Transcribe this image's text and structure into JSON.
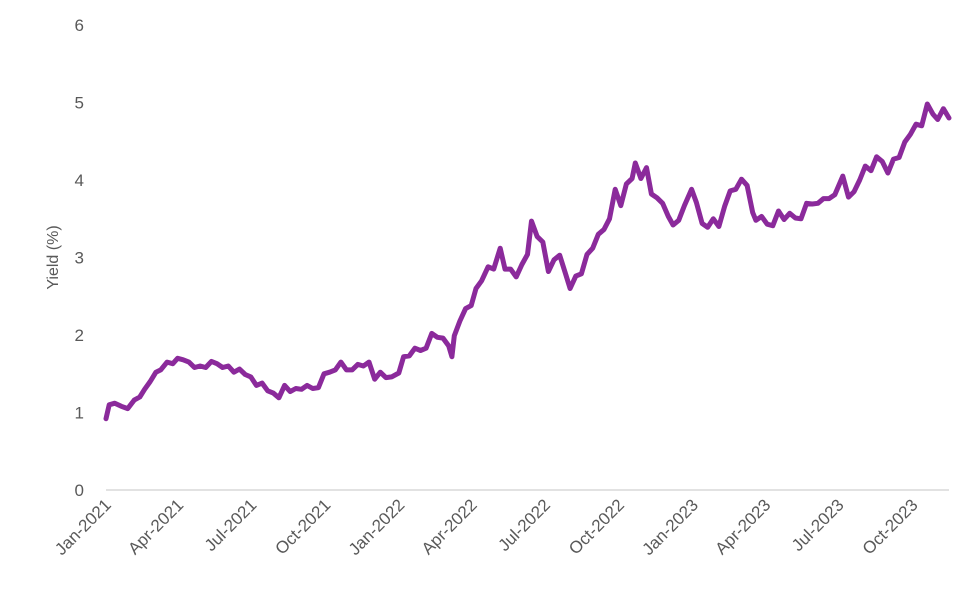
{
  "chart_data": {
    "type": "line",
    "title": "",
    "xlabel": "",
    "ylabel": "Yield (%)",
    "ylim": [
      0,
      6
    ],
    "yticks": [
      "0",
      "1",
      "2",
      "3",
      "4",
      "5",
      "6"
    ],
    "xlim": [
      "2021-01-01",
      "2023-11-15"
    ],
    "xticks": [
      {
        "date": "2021-01-01",
        "label": "Jan-2021"
      },
      {
        "date": "2021-04-01",
        "label": "Apr-2021"
      },
      {
        "date": "2021-07-01",
        "label": "Jul-2021"
      },
      {
        "date": "2021-10-01",
        "label": "Oct-2021"
      },
      {
        "date": "2022-01-01",
        "label": "Jan-2022"
      },
      {
        "date": "2022-04-01",
        "label": "Apr-2022"
      },
      {
        "date": "2022-07-01",
        "label": "Jul-2022"
      },
      {
        "date": "2022-10-01",
        "label": "Oct-2022"
      },
      {
        "date": "2023-01-01",
        "label": "Jan-2023"
      },
      {
        "date": "2023-04-01",
        "label": "Apr-2023"
      },
      {
        "date": "2023-07-01",
        "label": "Jul-2023"
      },
      {
        "date": "2023-10-01",
        "label": "Oct-2023"
      }
    ],
    "grid": false,
    "legend": "none",
    "line_color": "#8B2A9B",
    "axis_color": "#D9D9D9",
    "series": [
      {
        "name": "",
        "points": [
          [
            "2021-01-01",
            0.92
          ],
          [
            "2021-01-05",
            1.1
          ],
          [
            "2021-01-12",
            1.12
          ],
          [
            "2021-01-20",
            1.08
          ],
          [
            "2021-01-28",
            1.05
          ],
          [
            "2021-02-05",
            1.16
          ],
          [
            "2021-02-12",
            1.2
          ],
          [
            "2021-02-18",
            1.3
          ],
          [
            "2021-02-25",
            1.4
          ],
          [
            "2021-03-04",
            1.52
          ],
          [
            "2021-03-10",
            1.55
          ],
          [
            "2021-03-18",
            1.65
          ],
          [
            "2021-03-25",
            1.63
          ],
          [
            "2021-03-31",
            1.7
          ],
          [
            "2021-04-07",
            1.68
          ],
          [
            "2021-04-14",
            1.65
          ],
          [
            "2021-04-21",
            1.58
          ],
          [
            "2021-04-28",
            1.6
          ],
          [
            "2021-05-05",
            1.58
          ],
          [
            "2021-05-12",
            1.66
          ],
          [
            "2021-05-19",
            1.63
          ],
          [
            "2021-05-26",
            1.58
          ],
          [
            "2021-06-02",
            1.6
          ],
          [
            "2021-06-09",
            1.52
          ],
          [
            "2021-06-16",
            1.56
          ],
          [
            "2021-06-23",
            1.49
          ],
          [
            "2021-06-30",
            1.46
          ],
          [
            "2021-07-07",
            1.35
          ],
          [
            "2021-07-14",
            1.38
          ],
          [
            "2021-07-21",
            1.28
          ],
          [
            "2021-07-28",
            1.25
          ],
          [
            "2021-08-04",
            1.19
          ],
          [
            "2021-08-11",
            1.35
          ],
          [
            "2021-08-18",
            1.27
          ],
          [
            "2021-08-25",
            1.31
          ],
          [
            "2021-09-01",
            1.3
          ],
          [
            "2021-09-08",
            1.35
          ],
          [
            "2021-09-15",
            1.31
          ],
          [
            "2021-09-22",
            1.32
          ],
          [
            "2021-09-29",
            1.5
          ],
          [
            "2021-10-06",
            1.52
          ],
          [
            "2021-10-13",
            1.55
          ],
          [
            "2021-10-20",
            1.65
          ],
          [
            "2021-10-27",
            1.55
          ],
          [
            "2021-11-03",
            1.55
          ],
          [
            "2021-11-10",
            1.62
          ],
          [
            "2021-11-17",
            1.6
          ],
          [
            "2021-11-24",
            1.65
          ],
          [
            "2021-12-01",
            1.43
          ],
          [
            "2021-12-08",
            1.52
          ],
          [
            "2021-12-15",
            1.45
          ],
          [
            "2021-12-22",
            1.46
          ],
          [
            "2021-12-31",
            1.51
          ],
          [
            "2022-01-06",
            1.72
          ],
          [
            "2022-01-13",
            1.73
          ],
          [
            "2022-01-20",
            1.83
          ],
          [
            "2022-01-27",
            1.8
          ],
          [
            "2022-02-03",
            1.83
          ],
          [
            "2022-02-10",
            2.02
          ],
          [
            "2022-02-17",
            1.97
          ],
          [
            "2022-02-24",
            1.96
          ],
          [
            "2022-03-03",
            1.86
          ],
          [
            "2022-03-07",
            1.72
          ],
          [
            "2022-03-10",
            1.99
          ],
          [
            "2022-03-17",
            2.18
          ],
          [
            "2022-03-24",
            2.34
          ],
          [
            "2022-03-31",
            2.38
          ],
          [
            "2022-04-06",
            2.6
          ],
          [
            "2022-04-13",
            2.7
          ],
          [
            "2022-04-21",
            2.88
          ],
          [
            "2022-04-28",
            2.85
          ],
          [
            "2022-05-06",
            3.12
          ],
          [
            "2022-05-12",
            2.85
          ],
          [
            "2022-05-19",
            2.85
          ],
          [
            "2022-05-26",
            2.75
          ],
          [
            "2022-06-02",
            2.91
          ],
          [
            "2022-06-09",
            3.04
          ],
          [
            "2022-06-14",
            3.47
          ],
          [
            "2022-06-21",
            3.27
          ],
          [
            "2022-06-28",
            3.2
          ],
          [
            "2022-07-05",
            2.82
          ],
          [
            "2022-07-12",
            2.97
          ],
          [
            "2022-07-19",
            3.03
          ],
          [
            "2022-07-26",
            2.8
          ],
          [
            "2022-08-01",
            2.6
          ],
          [
            "2022-08-08",
            2.76
          ],
          [
            "2022-08-15",
            2.79
          ],
          [
            "2022-08-22",
            3.04
          ],
          [
            "2022-08-29",
            3.12
          ],
          [
            "2022-09-05",
            3.3
          ],
          [
            "2022-09-12",
            3.36
          ],
          [
            "2022-09-19",
            3.5
          ],
          [
            "2022-09-26",
            3.88
          ],
          [
            "2022-10-03",
            3.67
          ],
          [
            "2022-10-10",
            3.95
          ],
          [
            "2022-10-17",
            4.02
          ],
          [
            "2022-10-21",
            4.22
          ],
          [
            "2022-10-28",
            4.02
          ],
          [
            "2022-11-04",
            4.16
          ],
          [
            "2022-11-10",
            3.82
          ],
          [
            "2022-11-17",
            3.77
          ],
          [
            "2022-11-24",
            3.7
          ],
          [
            "2022-12-01",
            3.53
          ],
          [
            "2022-12-07",
            3.42
          ],
          [
            "2022-12-14",
            3.48
          ],
          [
            "2022-12-21",
            3.67
          ],
          [
            "2022-12-30",
            3.88
          ],
          [
            "2023-01-05",
            3.71
          ],
          [
            "2023-01-12",
            3.44
          ],
          [
            "2023-01-19",
            3.39
          ],
          [
            "2023-01-26",
            3.5
          ],
          [
            "2023-02-02",
            3.4
          ],
          [
            "2023-02-09",
            3.66
          ],
          [
            "2023-02-16",
            3.86
          ],
          [
            "2023-02-23",
            3.88
          ],
          [
            "2023-03-02",
            4.01
          ],
          [
            "2023-03-09",
            3.93
          ],
          [
            "2023-03-16",
            3.58
          ],
          [
            "2023-03-20",
            3.48
          ],
          [
            "2023-03-27",
            3.53
          ],
          [
            "2023-04-03",
            3.43
          ],
          [
            "2023-04-10",
            3.41
          ],
          [
            "2023-04-17",
            3.6
          ],
          [
            "2023-04-24",
            3.49
          ],
          [
            "2023-05-01",
            3.57
          ],
          [
            "2023-05-08",
            3.51
          ],
          [
            "2023-05-15",
            3.5
          ],
          [
            "2023-05-22",
            3.7
          ],
          [
            "2023-05-29",
            3.69
          ],
          [
            "2023-06-05",
            3.7
          ],
          [
            "2023-06-12",
            3.76
          ],
          [
            "2023-06-19",
            3.76
          ],
          [
            "2023-06-26",
            3.81
          ],
          [
            "2023-07-06",
            4.05
          ],
          [
            "2023-07-13",
            3.78
          ],
          [
            "2023-07-20",
            3.85
          ],
          [
            "2023-07-27",
            4.0
          ],
          [
            "2023-08-03",
            4.18
          ],
          [
            "2023-08-10",
            4.12
          ],
          [
            "2023-08-17",
            4.3
          ],
          [
            "2023-08-24",
            4.24
          ],
          [
            "2023-08-31",
            4.09
          ],
          [
            "2023-09-07",
            4.27
          ],
          [
            "2023-09-14",
            4.29
          ],
          [
            "2023-09-21",
            4.49
          ],
          [
            "2023-09-28",
            4.59
          ],
          [
            "2023-10-05",
            4.72
          ],
          [
            "2023-10-12",
            4.7
          ],
          [
            "2023-10-19",
            4.98
          ],
          [
            "2023-10-26",
            4.85
          ],
          [
            "2023-11-01",
            4.78
          ],
          [
            "2023-11-08",
            4.92
          ],
          [
            "2023-11-15",
            4.8
          ]
        ]
      }
    ]
  }
}
